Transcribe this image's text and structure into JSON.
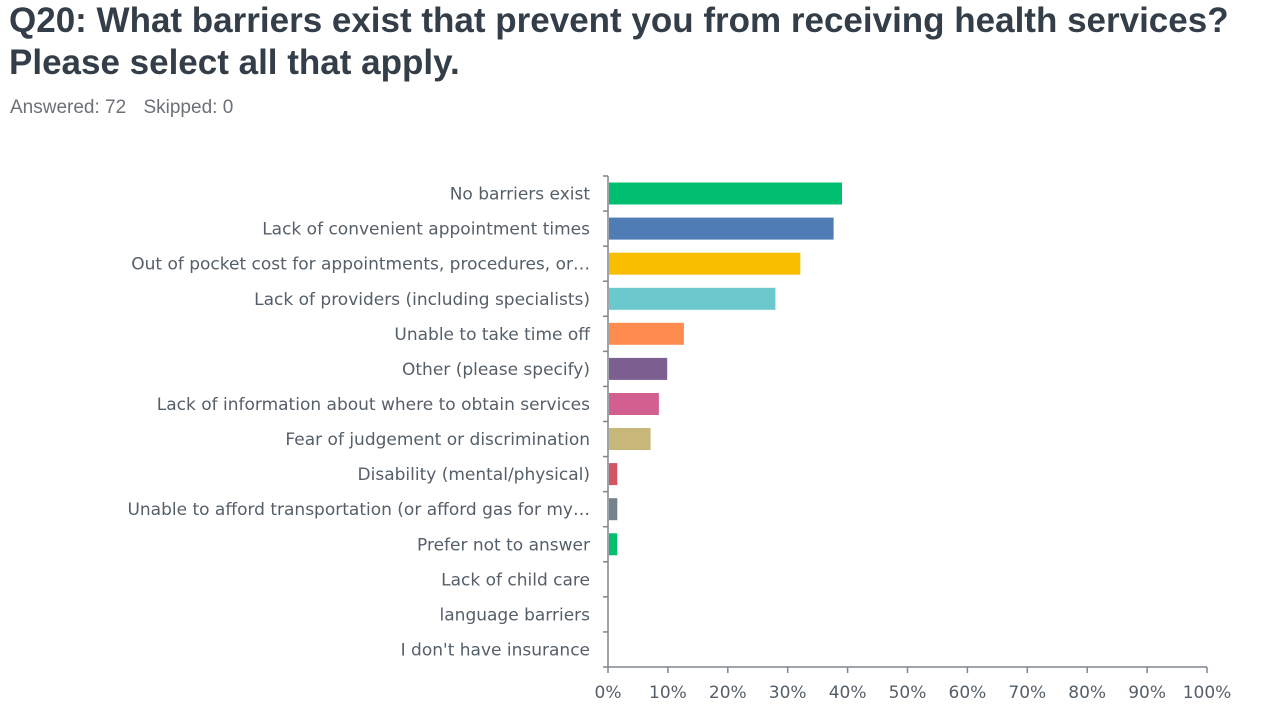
{
  "header": {
    "title": "Q20: What barriers exist that prevent you from receiving health services? Please select all that apply.",
    "answered": "Answered: 72",
    "skipped": "Skipped: 0"
  },
  "chart_data": {
    "type": "bar",
    "orientation": "horizontal",
    "categories": [
      "No barriers exist",
      "Lack of convenient appointment times",
      "Out of pocket cost for appointments, procedures, or…",
      "Lack of providers (including specialists)",
      "Unable to take time off",
      "Other (please specify)",
      "Lack of information about where to obtain services",
      "Fear of judgement or discrimination",
      "Disability (mental/physical)",
      "Unable to afford transportation (or afford gas for my…",
      "Prefer not to answer",
      "Lack of child care",
      "language barriers",
      "I don't have insurance"
    ],
    "values": [
      38.89,
      37.5,
      31.94,
      27.78,
      12.5,
      9.72,
      8.33,
      6.94,
      1.39,
      1.39,
      1.39,
      0,
      0,
      0
    ],
    "colors": [
      "#00bf6f",
      "#507cb6",
      "#f9be00",
      "#6bc8cd",
      "#ff8b4f",
      "#7d5e90",
      "#d25f90",
      "#c7b879",
      "#d25664",
      "#75818c",
      "#00bf6f",
      "#507cb6",
      "#f9be00",
      "#6bc8cd"
    ],
    "xlim": [
      0,
      100
    ],
    "xticks": [
      "0%",
      "10%",
      "20%",
      "30%",
      "40%",
      "50%",
      "60%",
      "70%",
      "80%",
      "90%",
      "100%"
    ],
    "grid": false,
    "axis_color": "#7f868d"
  }
}
